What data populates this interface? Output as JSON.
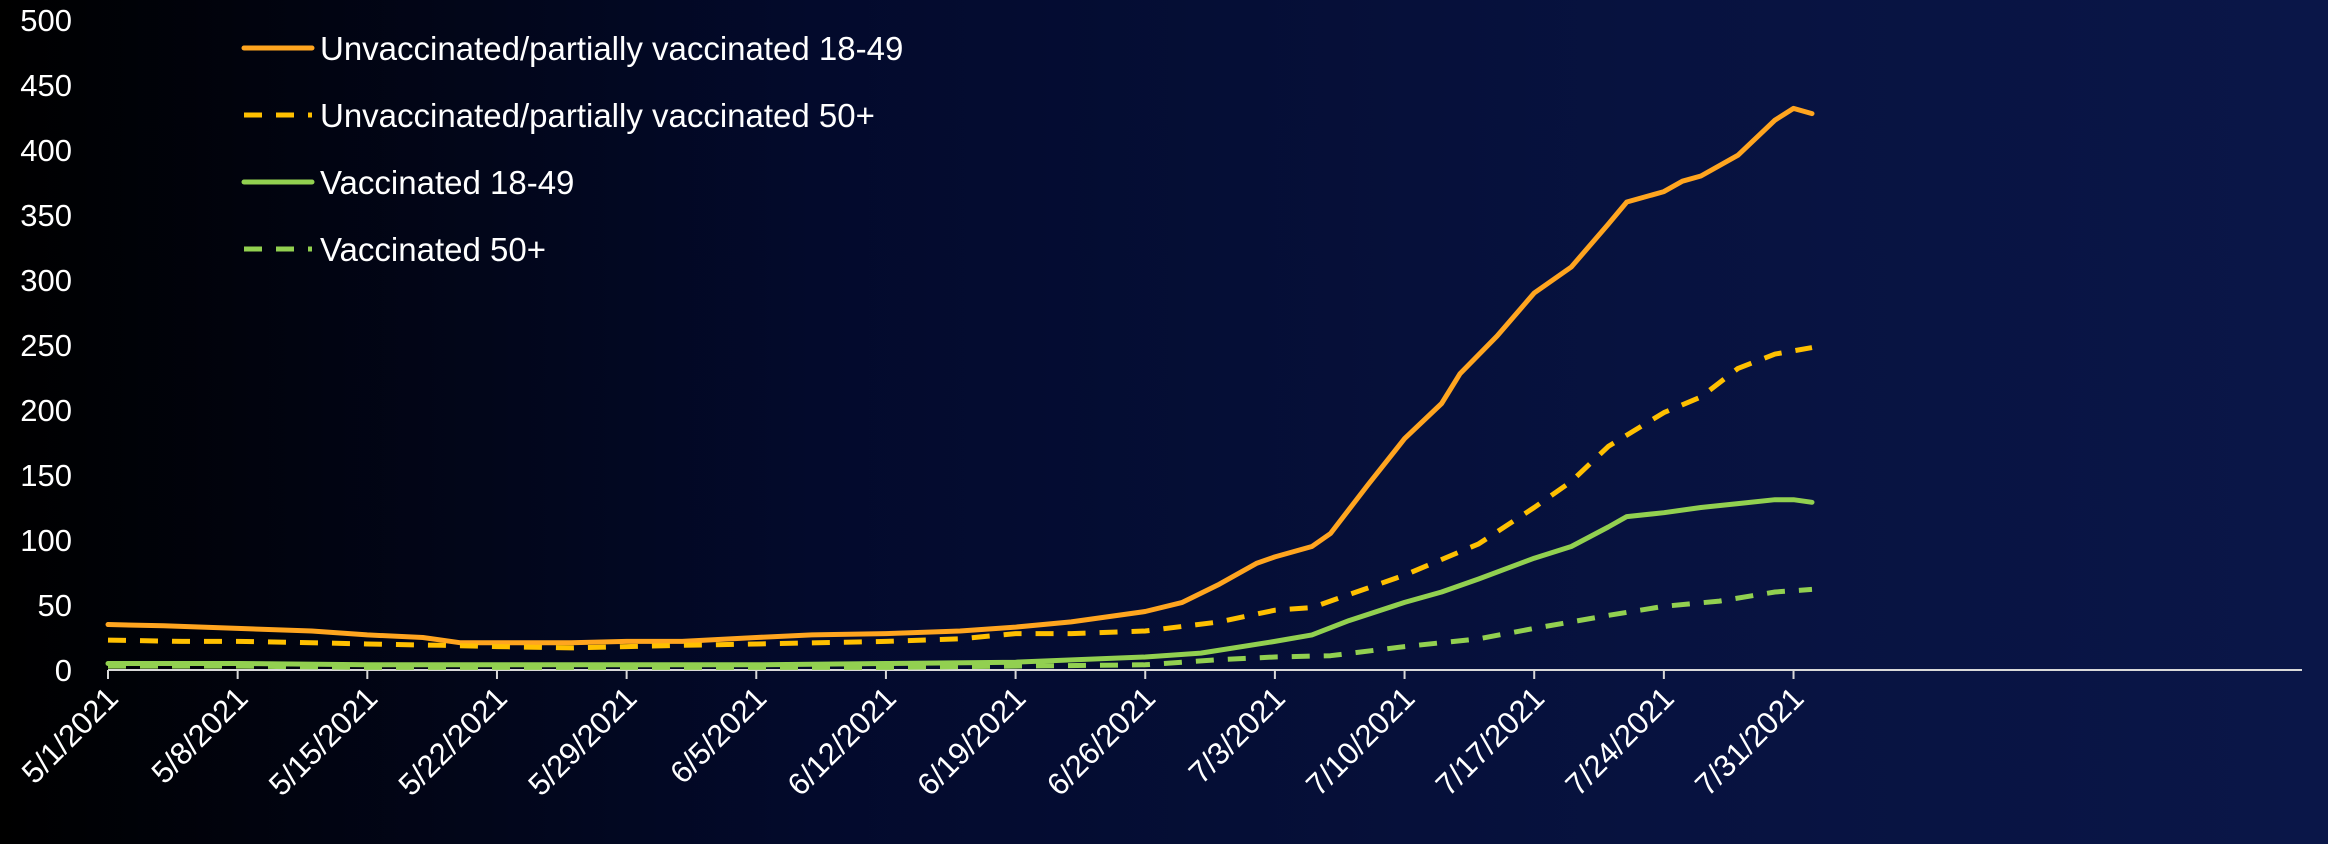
{
  "chart_data": {
    "type": "line",
    "title": "",
    "xlabel": "",
    "ylabel": "",
    "ylim": [
      0,
      500
    ],
    "yticks": [
      0,
      50,
      100,
      150,
      200,
      250,
      300,
      350,
      400,
      450,
      500
    ],
    "x_start": "5/1/2021",
    "x_end": "7/31/2021",
    "x_tick_labels": [
      "5/1/2021",
      "5/8/2021",
      "5/15/2021",
      "5/22/2021",
      "5/29/2021",
      "6/5/2021",
      "6/12/2021",
      "6/19/2021",
      "6/26/2021",
      "7/3/2021",
      "7/10/2021",
      "7/17/2021",
      "7/24/2021",
      "7/31/2021"
    ],
    "grid": false,
    "legend_position": "top-left",
    "series": [
      {
        "name": "Unvaccinated/partially vaccinated 18-49",
        "color": "#ffa51f",
        "dash": "solid",
        "points": [
          [
            "5/1/2021",
            35
          ],
          [
            "5/4/2021",
            34
          ],
          [
            "5/8/2021",
            32
          ],
          [
            "5/12/2021",
            30
          ],
          [
            "5/15/2021",
            27
          ],
          [
            "5/18/2021",
            25
          ],
          [
            "5/20/2021",
            21
          ],
          [
            "5/22/2021",
            21
          ],
          [
            "5/26/2021",
            21
          ],
          [
            "5/29/2021",
            22
          ],
          [
            "6/1/2021",
            22
          ],
          [
            "6/5/2021",
            25
          ],
          [
            "6/8/2021",
            27
          ],
          [
            "6/12/2021",
            28
          ],
          [
            "6/16/2021",
            30
          ],
          [
            "6/19/2021",
            33
          ],
          [
            "6/22/2021",
            37
          ],
          [
            "6/26/2021",
            45
          ],
          [
            "6/28/2021",
            52
          ],
          [
            "6/30/2021",
            66
          ],
          [
            "7/2/2021",
            82
          ],
          [
            "7/3/2021",
            87
          ],
          [
            "7/5/2021",
            95
          ],
          [
            "7/6/2021",
            105
          ],
          [
            "7/8/2021",
            142
          ],
          [
            "7/10/2021",
            178
          ],
          [
            "7/12/2021",
            205
          ],
          [
            "7/13/2021",
            228
          ],
          [
            "7/15/2021",
            257
          ],
          [
            "7/17/2021",
            290
          ],
          [
            "7/19/2021",
            310
          ],
          [
            "7/21/2021",
            343
          ],
          [
            "7/22/2021",
            360
          ],
          [
            "7/24/2021",
            368
          ],
          [
            "7/25/2021",
            376
          ],
          [
            "7/26/2021",
            380
          ],
          [
            "7/28/2021",
            396
          ],
          [
            "7/30/2021",
            423
          ],
          [
            "7/31/2021",
            432
          ],
          [
            "8/1/2021",
            428
          ]
        ]
      },
      {
        "name": "Unvaccinated/partially vaccinated 50+",
        "color": "#ffc000",
        "dash": "dashed",
        "points": [
          [
            "5/1/2021",
            23
          ],
          [
            "5/5/2021",
            22
          ],
          [
            "5/8/2021",
            22
          ],
          [
            "5/12/2021",
            21
          ],
          [
            "5/15/2021",
            20
          ],
          [
            "5/19/2021",
            19
          ],
          [
            "5/22/2021",
            18
          ],
          [
            "5/26/2021",
            17
          ],
          [
            "5/29/2021",
            18
          ],
          [
            "6/1/2021",
            19
          ],
          [
            "6/5/2021",
            20
          ],
          [
            "6/12/2021",
            22
          ],
          [
            "6/16/2021",
            24
          ],
          [
            "6/19/2021",
            28
          ],
          [
            "6/22/2021",
            28
          ],
          [
            "6/26/2021",
            30
          ],
          [
            "6/30/2021",
            37
          ],
          [
            "7/3/2021",
            46
          ],
          [
            "7/5/2021",
            48
          ],
          [
            "7/7/2021",
            58
          ],
          [
            "7/10/2021",
            73
          ],
          [
            "7/14/2021",
            97
          ],
          [
            "7/17/2021",
            125
          ],
          [
            "7/19/2021",
            145
          ],
          [
            "7/21/2021",
            172
          ],
          [
            "7/24/2021",
            198
          ],
          [
            "7/26/2021",
            210
          ],
          [
            "7/28/2021",
            232
          ],
          [
            "7/30/2021",
            243
          ],
          [
            "8/1/2021",
            248
          ]
        ]
      },
      {
        "name": "Vaccinated 18-49",
        "color": "#92d050",
        "dash": "solid",
        "points": [
          [
            "5/1/2021",
            5
          ],
          [
            "5/8/2021",
            5
          ],
          [
            "5/15/2021",
            4
          ],
          [
            "5/22/2021",
            4
          ],
          [
            "5/29/2021",
            4
          ],
          [
            "6/5/2021",
            4
          ],
          [
            "6/12/2021",
            5
          ],
          [
            "6/19/2021",
            6
          ],
          [
            "6/26/2021",
            10
          ],
          [
            "6/29/2021",
            13
          ],
          [
            "7/3/2021",
            22
          ],
          [
            "7/5/2021",
            27
          ],
          [
            "7/7/2021",
            38
          ],
          [
            "7/10/2021",
            52
          ],
          [
            "7/12/2021",
            60
          ],
          [
            "7/14/2021",
            70
          ],
          [
            "7/17/2021",
            86
          ],
          [
            "7/19/2021",
            95
          ],
          [
            "7/21/2021",
            110
          ],
          [
            "7/22/2021",
            118
          ],
          [
            "7/24/2021",
            121
          ],
          [
            "7/26/2021",
            125
          ],
          [
            "7/28/2021",
            128
          ],
          [
            "7/30/2021",
            131
          ],
          [
            "7/31/2021",
            131
          ],
          [
            "8/1/2021",
            129
          ]
        ]
      },
      {
        "name": "Vaccinated 50+",
        "color": "#92d050",
        "dash": "dashed",
        "points": [
          [
            "5/1/2021",
            3
          ],
          [
            "5/8/2021",
            3
          ],
          [
            "5/15/2021",
            2
          ],
          [
            "5/22/2021",
            2
          ],
          [
            "5/29/2021",
            2
          ],
          [
            "6/5/2021",
            2
          ],
          [
            "6/12/2021",
            2
          ],
          [
            "6/19/2021",
            3
          ],
          [
            "6/26/2021",
            4
          ],
          [
            "6/30/2021",
            8
          ],
          [
            "7/3/2021",
            10
          ],
          [
            "7/6/2021",
            11
          ],
          [
            "7/10/2021",
            18
          ],
          [
            "7/14/2021",
            24
          ],
          [
            "7/17/2021",
            32
          ],
          [
            "7/21/2021",
            42
          ],
          [
            "7/24/2021",
            49
          ],
          [
            "7/27/2021",
            53
          ],
          [
            "7/30/2021",
            60
          ],
          [
            "8/1/2021",
            62
          ]
        ]
      }
    ]
  }
}
